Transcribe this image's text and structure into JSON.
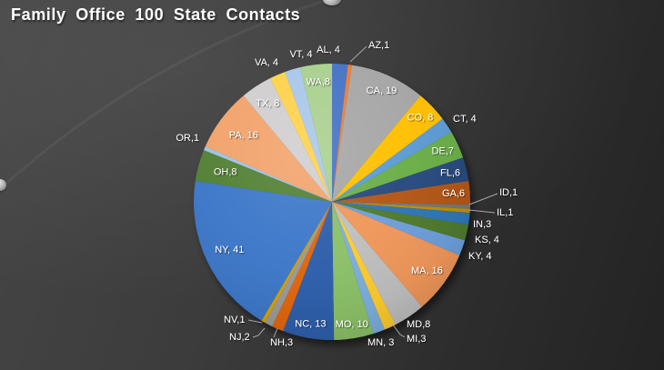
{
  "title": "Family Office 100 State Contacts",
  "colors": {
    "title_text": "#FFFFFF",
    "label_text": "#FFFFFF",
    "leader_line": "#A6A6A6",
    "background_light": "#464646",
    "background_dark": "#232323"
  },
  "chart_data": {
    "type": "pie",
    "title": "Family Office 100 State Contacts",
    "total": 217,
    "start_angle_deg": 0,
    "direction": "clockwise",
    "legend": "none",
    "label_format": "state, value",
    "slices": [
      {
        "state": "AL",
        "value": 4,
        "label": "AL, 4",
        "color": "#4472C4",
        "placement": "outside"
      },
      {
        "state": "AZ",
        "value": 1,
        "label": "AZ,1",
        "color": "#ED7D31",
        "placement": "leader"
      },
      {
        "state": "CA",
        "value": 19,
        "label": "CA, 19",
        "color": "#A6A6A6",
        "placement": "inside"
      },
      {
        "state": "CO",
        "value": 8,
        "label": "CO, 8",
        "color": "#FFC000",
        "placement": "inside"
      },
      {
        "state": "CT",
        "value": 4,
        "label": "CT, 4",
        "color": "#5B9BD5",
        "placement": "outside"
      },
      {
        "state": "DE",
        "value": 7,
        "label": "DE,7",
        "color": "#6AAE47",
        "placement": "inside"
      },
      {
        "state": "FL",
        "value": 6,
        "label": "FL,6",
        "color": "#284A7D",
        "placement": "inside"
      },
      {
        "state": "GA",
        "value": 6,
        "label": "GA,6",
        "color": "#B25414",
        "placement": "inside"
      },
      {
        "state": "ID",
        "value": 1,
        "label": "ID,1",
        "color": "#767676",
        "placement": "leader"
      },
      {
        "state": "IL",
        "value": 1,
        "label": "IL,1",
        "color": "#BF8F00",
        "placement": "leader"
      },
      {
        "state": "IN",
        "value": 3,
        "label": "IN,3",
        "color": "#2E74B5",
        "placement": "outside"
      },
      {
        "state": "KS",
        "value": 4,
        "label": "KS, 4",
        "color": "#4F7A2D",
        "placement": "outside"
      },
      {
        "state": "KY",
        "value": 4,
        "label": "KY, 4",
        "color": "#6D9EDB",
        "placement": "outside"
      },
      {
        "state": "MA",
        "value": 16,
        "label": "MA, 16",
        "color": "#F0975A",
        "placement": "inside"
      },
      {
        "state": "MD",
        "value": 8,
        "label": "MD,8",
        "color": "#BFBFBF",
        "placement": "outside"
      },
      {
        "state": "MI",
        "value": 3,
        "label": "MI,3",
        "color": "#FFCC2F",
        "placement": "leader"
      },
      {
        "state": "MN",
        "value": 3,
        "label": "MN, 3",
        "color": "#7CAFDD",
        "placement": "outside"
      },
      {
        "state": "MO",
        "value": 10,
        "label": "MO, 10",
        "color": "#8CC168",
        "placement": "inside"
      },
      {
        "state": "NC",
        "value": 13,
        "label": "NC, 13",
        "color": "#2E5EAC",
        "placement": "inside"
      },
      {
        "state": "NH",
        "value": 3,
        "label": "NH,3",
        "color": "#E1660C",
        "placement": "leader"
      },
      {
        "state": "NJ",
        "value": 2,
        "label": "NJ,2",
        "color": "#9A9A9A",
        "placement": "leader"
      },
      {
        "state": "NV",
        "value": 1,
        "label": "NV,1",
        "color": "#D6A300",
        "placement": "leader"
      },
      {
        "state": "NY",
        "value": 41,
        "label": "NY, 41",
        "color": "#3D78C9",
        "placement": "inside"
      },
      {
        "state": "OH",
        "value": 8,
        "label": "OH,8",
        "color": "#538135",
        "placement": "inside"
      },
      {
        "state": "OR",
        "value": 1,
        "label": "OR,1",
        "color": "#9DC3E6",
        "placement": "outside"
      },
      {
        "state": "PA",
        "value": 16,
        "label": "PA, 16",
        "color": "#F2A36C",
        "placement": "inside"
      },
      {
        "state": "TX",
        "value": 8,
        "label": "TX, 8",
        "color": "#D0CECE",
        "placement": "inside"
      },
      {
        "state": "VA",
        "value": 4,
        "label": "VA, 4",
        "color": "#FFD24B",
        "placement": "outside"
      },
      {
        "state": "VT",
        "value": 4,
        "label": "VT, 4",
        "color": "#A9C7E9",
        "placement": "outside"
      },
      {
        "state": "WA",
        "value": 8,
        "label": "WA,8",
        "color": "#A9D08E",
        "placement": "inside"
      }
    ]
  }
}
